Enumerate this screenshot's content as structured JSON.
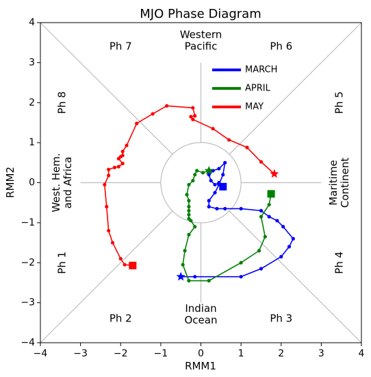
{
  "chart_data": {
    "type": "line",
    "title": "MJO Phase Diagram",
    "xlabel": "RMM1",
    "ylabel": "RMM2",
    "xlim": [
      -4,
      4
    ],
    "ylim": [
      -4,
      4
    ],
    "xticks": [
      -4,
      -3,
      -2,
      -1,
      0,
      1,
      2,
      3,
      4
    ],
    "yticks": [
      -4,
      -3,
      -2,
      -1,
      0,
      1,
      2,
      3,
      4
    ],
    "unit_circle_radius": 1,
    "phase_labels": [
      {
        "text": "Ph 1",
        "x": -3.45,
        "y": -2.0,
        "rotation": -90
      },
      {
        "text": "Ph 2",
        "x": -2.0,
        "y": -3.4,
        "rotation": 0
      },
      {
        "text": "Ph 3",
        "x": 2.0,
        "y": -3.4,
        "rotation": 0
      },
      {
        "text": "Ph 4",
        "x": 3.45,
        "y": -2.0,
        "rotation": -90
      },
      {
        "text": "Ph 5",
        "x": 3.45,
        "y": 2.0,
        "rotation": -90
      },
      {
        "text": "Ph 6",
        "x": 2.0,
        "y": 3.4,
        "rotation": 0
      },
      {
        "text": "Ph 7",
        "x": -2.0,
        "y": 3.4,
        "rotation": 0
      },
      {
        "text": "Ph 8",
        "x": -3.45,
        "y": 2.0,
        "rotation": -90
      }
    ],
    "region_labels": [
      {
        "lines": [
          "Western",
          "Pacific"
        ],
        "x": 0.0,
        "y": 3.55,
        "rotation": 0
      },
      {
        "lines": [
          "Indian",
          "Ocean"
        ],
        "x": 0.0,
        "y": -3.3,
        "rotation": 0
      },
      {
        "lines": [
          "West. Hem.",
          "and Africa"
        ],
        "x": -3.45,
        "y": 0.0,
        "rotation": -90
      },
      {
        "lines": [
          "Maritime",
          "Continent"
        ],
        "x": 3.45,
        "y": 0.0,
        "rotation": -90
      }
    ],
    "legend": {
      "position": "upper-center",
      "entries": [
        "MARCH",
        "APRIL",
        "MAY"
      ]
    },
    "series": [
      {
        "name": "MARCH",
        "color": "#0000ff",
        "start_marker": "star",
        "end_marker": "square",
        "x": [
          -0.5,
          -0.15,
          1.0,
          1.5,
          2.0,
          2.2,
          2.3,
          2.05,
          1.9,
          1.7,
          1.5,
          1.0,
          0.6,
          0.4,
          0.2,
          0.2,
          0.35,
          0.45,
          0.55,
          0.6,
          0.45,
          0.3,
          0.2,
          0.25,
          0.35,
          0.45,
          0.55
        ],
        "y": [
          -2.35,
          -2.35,
          -2.35,
          -2.15,
          -1.85,
          -1.6,
          -1.4,
          -1.1,
          -0.95,
          -0.85,
          -0.7,
          -0.65,
          -0.65,
          -0.65,
          -0.6,
          -0.45,
          -0.25,
          -0.05,
          0.2,
          0.5,
          0.35,
          0.3,
          0.2,
          0.05,
          -0.05,
          0.0,
          -0.1
        ]
      },
      {
        "name": "APRIL",
        "color": "#008000",
        "start_marker": "star",
        "end_marker": "square",
        "x": [
          0.2,
          0.05,
          -0.1,
          -0.15,
          -0.2,
          -0.3,
          -0.35,
          -0.3,
          -0.3,
          -0.3,
          -0.3,
          -0.3,
          -0.25,
          -0.15,
          -0.3,
          -0.4,
          -0.45,
          -0.3,
          0.2,
          1.0,
          1.45,
          1.6,
          1.5,
          1.7,
          1.75
        ],
        "y": [
          0.3,
          0.25,
          0.3,
          0.2,
          0.05,
          -0.05,
          -0.3,
          -0.45,
          -0.6,
          -0.7,
          -0.8,
          -0.9,
          -0.95,
          -1.1,
          -1.3,
          -1.7,
          -2.05,
          -2.45,
          -2.45,
          -2.0,
          -1.7,
          -1.35,
          -0.85,
          -0.55,
          -0.28
        ]
      },
      {
        "name": "MAY",
        "color": "#ff0000",
        "start_marker": "star",
        "end_marker": "square",
        "x": [
          1.83,
          1.5,
          1.15,
          0.7,
          0.3,
          -0.2,
          -0.25,
          -0.15,
          -0.2,
          -0.85,
          -1.2,
          -1.6,
          -1.85,
          -1.95,
          -1.95,
          -2.0,
          -2.05,
          -1.95,
          -2.05,
          -2.15,
          -2.3,
          -2.3,
          -2.4,
          -2.35,
          -2.3,
          -2.2,
          -2.0,
          -1.9,
          -1.7
        ],
        "y": [
          0.22,
          0.52,
          0.88,
          1.07,
          1.35,
          1.58,
          1.65,
          1.67,
          1.87,
          1.92,
          1.72,
          1.48,
          0.93,
          0.78,
          0.68,
          0.65,
          0.6,
          0.48,
          0.4,
          0.38,
          0.33,
          0.18,
          -0.05,
          -0.6,
          -1.2,
          -1.5,
          -1.9,
          -2.05,
          -2.07
        ]
      }
    ]
  }
}
